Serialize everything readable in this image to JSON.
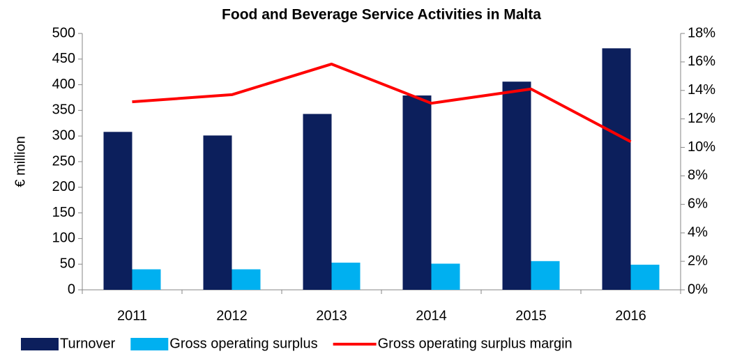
{
  "chart_data": {
    "type": "bar",
    "title": "Food and Beverage Service Activities in Malta",
    "y_label": "€ million",
    "categories": [
      "2011",
      "2012",
      "2013",
      "2014",
      "2015",
      "2016"
    ],
    "series": [
      {
        "name": "Turnover",
        "type": "bar",
        "color": "#0c1f5c",
        "values": [
          308,
          301,
          343,
          379,
          406,
          471
        ]
      },
      {
        "name": "Gross operating surplus",
        "type": "bar",
        "color": "#00b0f0",
        "values": [
          40,
          40,
          53,
          51,
          56,
          49
        ]
      },
      {
        "name": "Gross operating surplus margin",
        "type": "line",
        "axis": "y2",
        "color": "#ff0000",
        "values": [
          13.2,
          13.7,
          15.85,
          13.1,
          14.1,
          10.4
        ]
      }
    ],
    "ylim": [
      0,
      500
    ],
    "yticks": [
      0,
      50,
      100,
      150,
      200,
      250,
      300,
      350,
      400,
      450,
      500
    ],
    "y2lim": [
      0,
      18
    ],
    "y2ticks": [
      {
        "value": 0,
        "label": "0%"
      },
      {
        "value": 2,
        "label": "2%"
      },
      {
        "value": 4,
        "label": "4%"
      },
      {
        "value": 6,
        "label": "6%"
      },
      {
        "value": 8,
        "label": "8%"
      },
      {
        "value": 10,
        "label": "10%"
      },
      {
        "value": 12,
        "label": "12%"
      },
      {
        "value": 14,
        "label": "14%"
      },
      {
        "value": 16,
        "label": "16%"
      },
      {
        "value": 18,
        "label": "18%"
      }
    ],
    "grid": false,
    "legend": "bottom"
  }
}
